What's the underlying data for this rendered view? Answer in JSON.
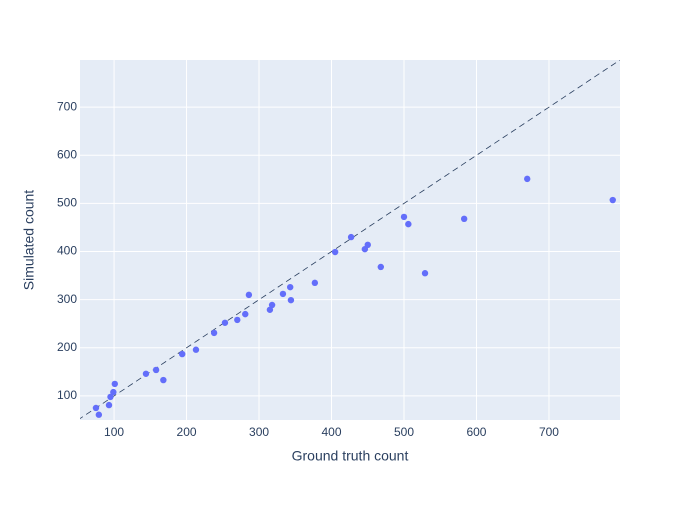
{
  "chart_data": {
    "type": "scatter",
    "xlabel": "Ground truth count",
    "ylabel": "Simulated count",
    "x": [
      75,
      79,
      93,
      95,
      99,
      101,
      144,
      158,
      168,
      194,
      213,
      238,
      253,
      270,
      281,
      286,
      315,
      318,
      333,
      343,
      344,
      377,
      405,
      427,
      446,
      450,
      468,
      500,
      506,
      529,
      583,
      670,
      788
    ],
    "values": [
      75,
      61,
      81,
      98,
      108,
      125,
      146,
      154,
      133,
      187,
      196,
      231,
      252,
      258,
      270,
      310,
      279,
      289,
      312,
      326,
      299,
      335,
      399,
      430,
      405,
      414,
      368,
      472,
      457,
      355,
      468,
      551,
      507
    ],
    "color": "#636efa",
    "xlim": [
      53,
      798
    ],
    "ylim": [
      50,
      798
    ],
    "xticks": [
      100,
      200,
      300,
      400,
      500,
      600,
      700
    ],
    "yticks": [
      100,
      200,
      300,
      400,
      500,
      600,
      700
    ],
    "grid": true,
    "identity_line": true
  }
}
